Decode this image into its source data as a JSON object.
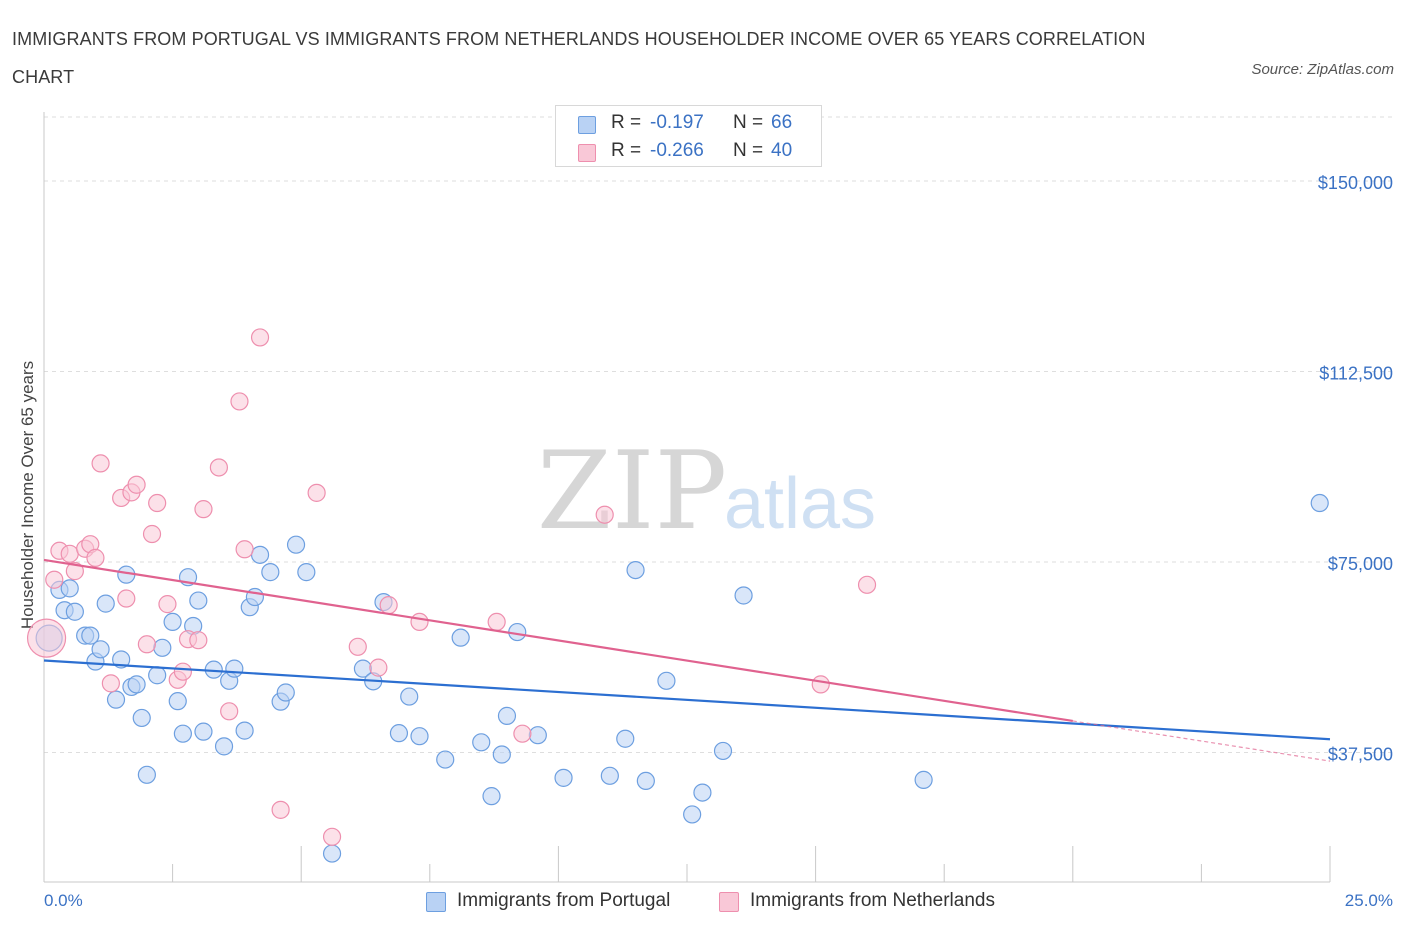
{
  "chart_data": {
    "type": "scatter",
    "title": "IMMIGRANTS FROM PORTUGAL VS IMMIGRANTS FROM NETHERLANDS HOUSEHOLDER INCOME OVER 65 YEARS CORRELATION CHART",
    "source": "Source: ZipAtlas.com",
    "ylabel": "Householder Income Over 65 years",
    "xlabel": "",
    "x_tick_labels": {
      "min": "0.0%",
      "max": "25.0%"
    },
    "xlim": [
      0,
      25
    ],
    "ylim": [
      12000,
      162000
    ],
    "y_ticks": [
      {
        "value": 150000,
        "label": "$150,000"
      },
      {
        "value": 112500,
        "label": "$112,500"
      },
      {
        "value": 75000,
        "label": "$75,000"
      },
      {
        "value": 37500,
        "label": "$37,500"
      }
    ],
    "grid": "horizontal-dashed",
    "watermark": "ZIPatlas",
    "legend_position": "bottom-center",
    "stats": [
      {
        "r_label": "R =",
        "r_value": "-0.197",
        "n_label": "N =",
        "n_value": "66",
        "color": "#6d9fe0",
        "fill": "#b9d2f4"
      },
      {
        "r_label": "R =",
        "r_value": "-0.266",
        "n_label": "N =",
        "n_value": "40",
        "color": "#ee8fae",
        "fill": "#f9c8d7"
      }
    ],
    "series": [
      {
        "name": "Immigrants from Portugal",
        "color": "#6d9fe0",
        "fill": "#b9d2f4",
        "line_color": "#2c6fd1",
        "trend": {
          "x": [
            0,
            25
          ],
          "y": [
            55600,
            40100
          ]
        },
        "points": [
          [
            0.1,
            60000
          ],
          [
            0.3,
            69500
          ],
          [
            0.4,
            65500
          ],
          [
            0.5,
            69800
          ],
          [
            0.6,
            65200
          ],
          [
            0.8,
            60500
          ],
          [
            0.9,
            60500
          ],
          [
            1.0,
            55400
          ],
          [
            1.1,
            57800
          ],
          [
            1.2,
            66800
          ],
          [
            1.4,
            47900
          ],
          [
            1.5,
            55800
          ],
          [
            1.6,
            72500
          ],
          [
            1.7,
            50400
          ],
          [
            1.8,
            50900
          ],
          [
            1.9,
            44300
          ],
          [
            2.0,
            33100
          ],
          [
            2.2,
            52700
          ],
          [
            2.3,
            58100
          ],
          [
            2.5,
            63200
          ],
          [
            2.6,
            47600
          ],
          [
            2.7,
            41200
          ],
          [
            2.8,
            72000
          ],
          [
            2.9,
            62400
          ],
          [
            3.0,
            67400
          ],
          [
            3.1,
            41600
          ],
          [
            3.3,
            53800
          ],
          [
            3.5,
            38700
          ],
          [
            3.6,
            51600
          ],
          [
            3.7,
            54000
          ],
          [
            3.9,
            41800
          ],
          [
            4.0,
            66100
          ],
          [
            4.1,
            68100
          ],
          [
            4.2,
            76400
          ],
          [
            4.4,
            73000
          ],
          [
            4.6,
            47500
          ],
          [
            4.7,
            49300
          ],
          [
            4.9,
            78400
          ],
          [
            5.1,
            73000
          ],
          [
            5.6,
            17600
          ],
          [
            6.2,
            54000
          ],
          [
            6.4,
            51500
          ],
          [
            6.6,
            67100
          ],
          [
            6.9,
            41300
          ],
          [
            7.1,
            48500
          ],
          [
            7.3,
            40700
          ],
          [
            7.8,
            36100
          ],
          [
            8.1,
            60100
          ],
          [
            8.5,
            39500
          ],
          [
            8.7,
            28900
          ],
          [
            8.9,
            37100
          ],
          [
            9.0,
            44700
          ],
          [
            9.2,
            61200
          ],
          [
            9.6,
            40900
          ],
          [
            10.1,
            32500
          ],
          [
            11.0,
            32900
          ],
          [
            11.3,
            40200
          ],
          [
            11.5,
            73400
          ],
          [
            11.7,
            31900
          ],
          [
            12.1,
            51600
          ],
          [
            12.6,
            25300
          ],
          [
            12.8,
            29600
          ],
          [
            13.2,
            37800
          ],
          [
            13.6,
            68400
          ],
          [
            17.1,
            32100
          ],
          [
            24.8,
            86600
          ]
        ]
      },
      {
        "name": "Immigrants from Netherlands",
        "color": "#ee8fae",
        "fill": "#f9c8d7",
        "line_color": "#e0628f",
        "trend": {
          "x": [
            0,
            20
          ],
          "y": [
            75400,
            43700
          ]
        },
        "trend_ext": {
          "x": [
            20,
            25
          ],
          "y": [
            43700,
            35800
          ]
        },
        "points": [
          [
            0.05,
            60000
          ],
          [
            0.2,
            71500
          ],
          [
            0.3,
            77200
          ],
          [
            0.5,
            76600
          ],
          [
            0.6,
            73200
          ],
          [
            0.8,
            77600
          ],
          [
            0.9,
            78500
          ],
          [
            1.0,
            75800
          ],
          [
            1.1,
            94400
          ],
          [
            1.3,
            51100
          ],
          [
            1.5,
            87600
          ],
          [
            1.6,
            67800
          ],
          [
            1.7,
            88700
          ],
          [
            1.8,
            90200
          ],
          [
            2.0,
            58800
          ],
          [
            2.1,
            80500
          ],
          [
            2.2,
            86600
          ],
          [
            2.4,
            66700
          ],
          [
            2.6,
            51800
          ],
          [
            2.7,
            53400
          ],
          [
            2.8,
            59800
          ],
          [
            3.0,
            59600
          ],
          [
            3.1,
            85400
          ],
          [
            3.4,
            93600
          ],
          [
            3.6,
            45600
          ],
          [
            3.8,
            106600
          ],
          [
            3.9,
            77500
          ],
          [
            4.2,
            119200
          ],
          [
            4.6,
            26200
          ],
          [
            5.3,
            88600
          ],
          [
            5.6,
            20900
          ],
          [
            6.1,
            58300
          ],
          [
            6.5,
            54200
          ],
          [
            6.7,
            66500
          ],
          [
            7.3,
            63200
          ],
          [
            8.8,
            63200
          ],
          [
            9.3,
            41200
          ],
          [
            10.9,
            84300
          ],
          [
            15.1,
            50900
          ],
          [
            16.0,
            70500
          ]
        ]
      }
    ]
  }
}
